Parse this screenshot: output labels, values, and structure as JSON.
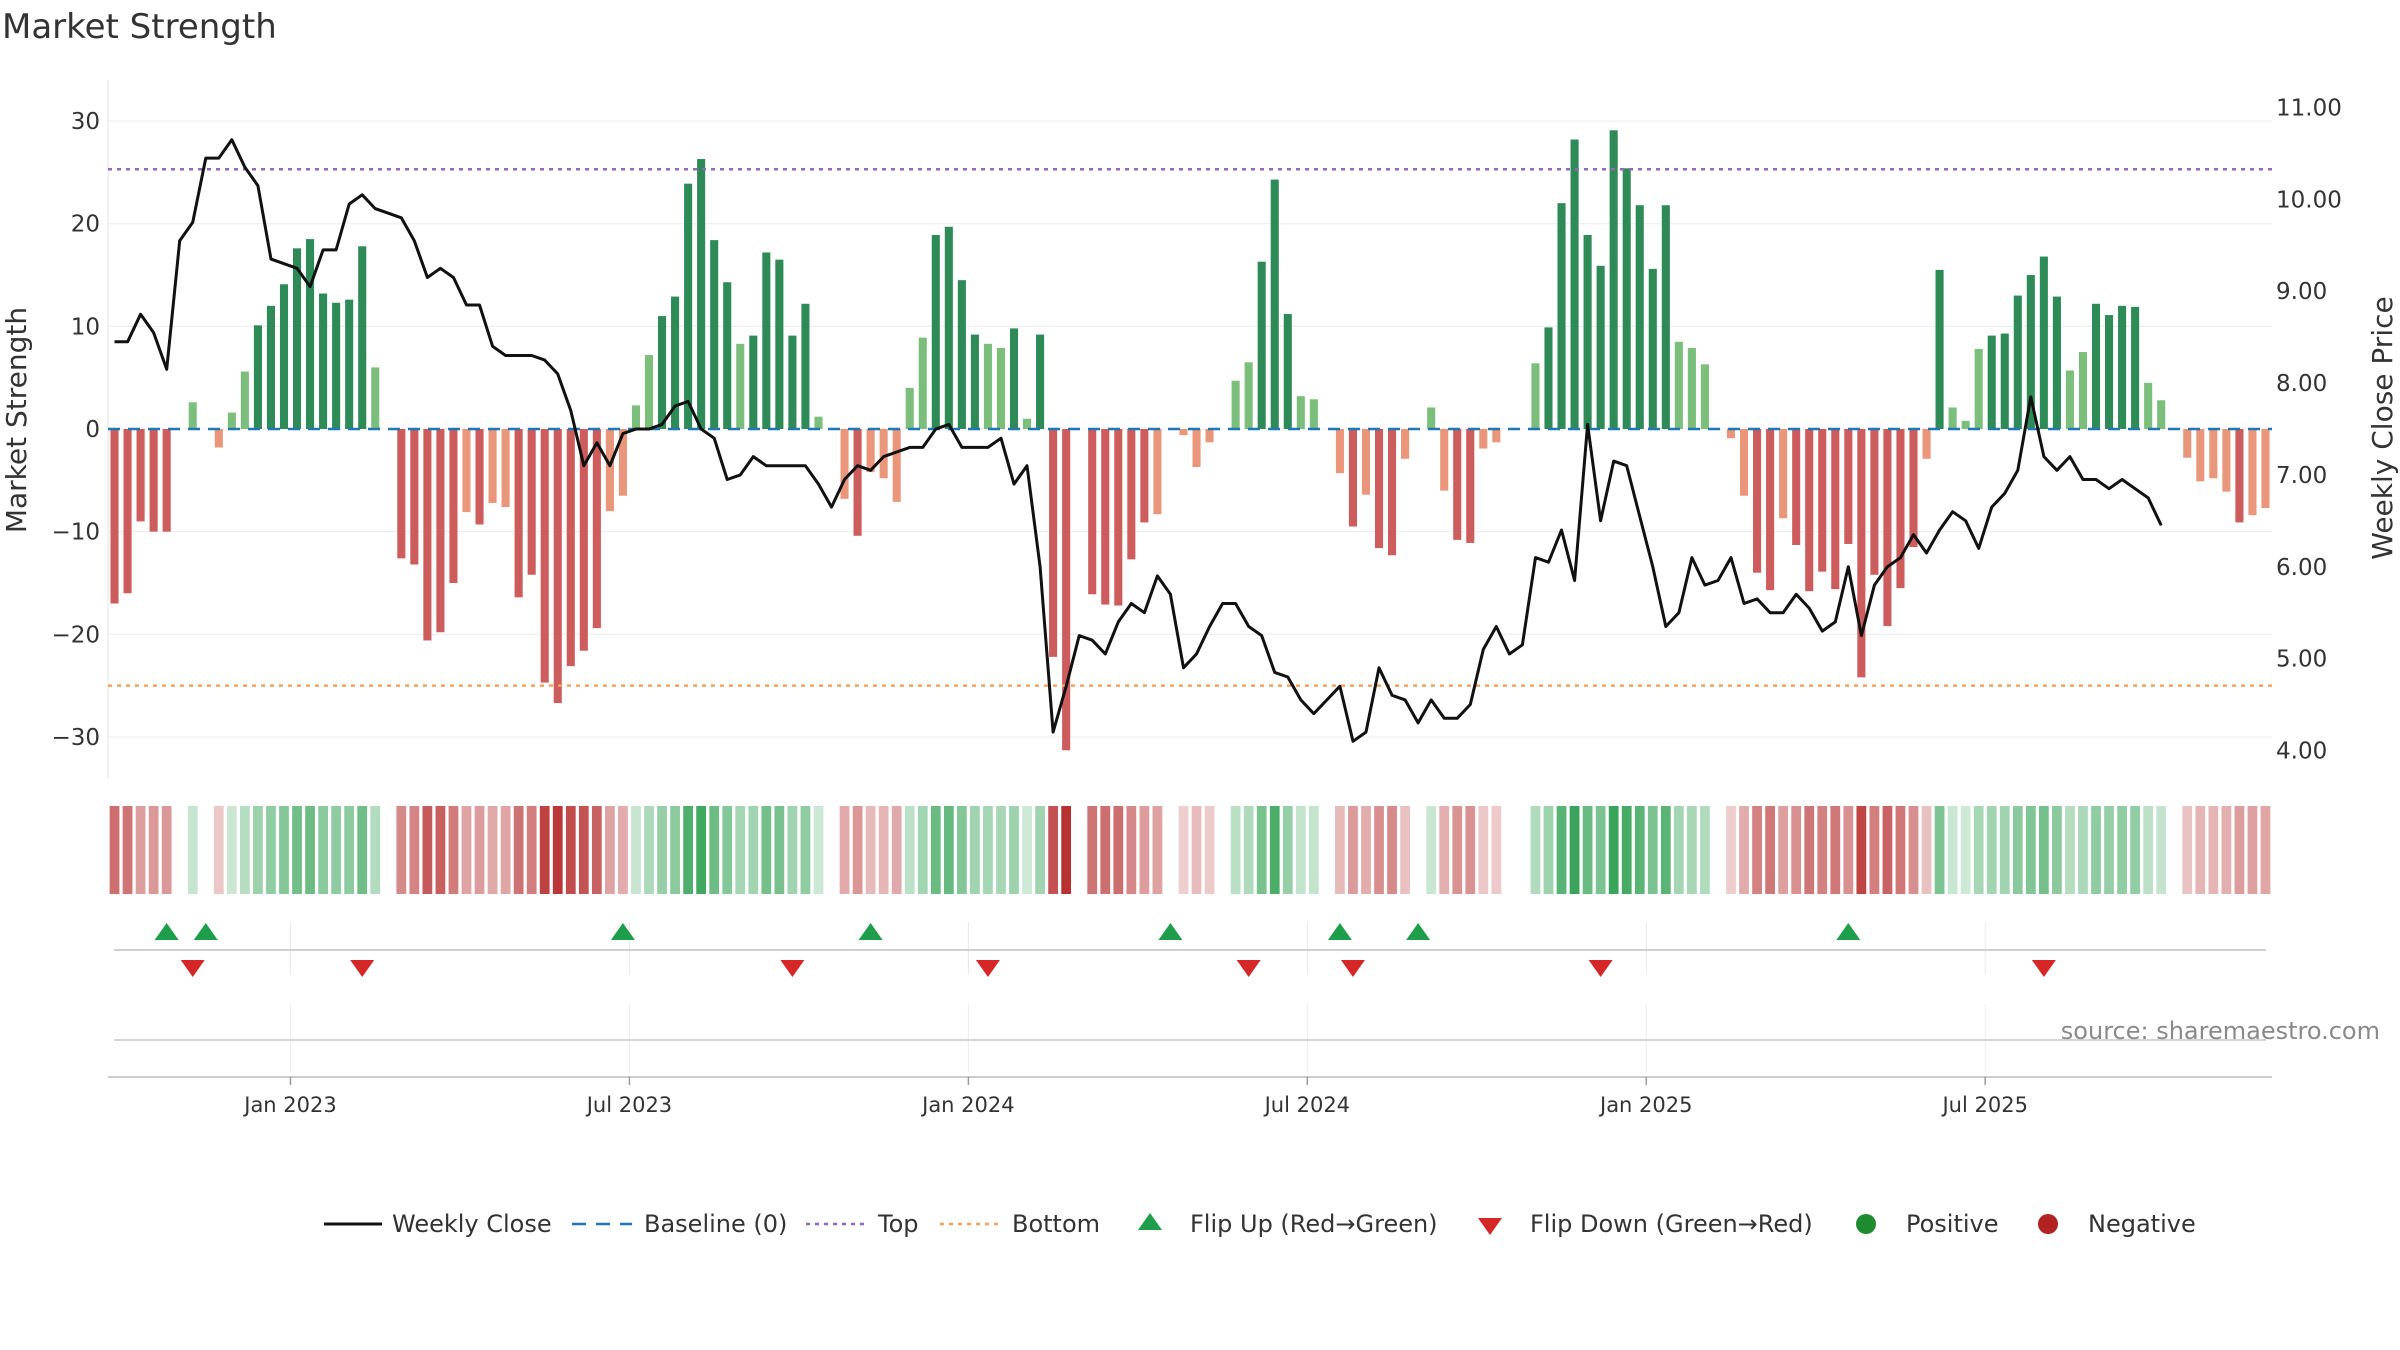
{
  "chart_data": {
    "type": "bar+line",
    "title": "Market Strength",
    "ylabel_left": "Market Strength",
    "ylabel_right": "Weekly Close Price",
    "source": "source: sharemaestro.com",
    "left_ylim": [
      -34,
      34
    ],
    "left_ticks": [
      30,
      20,
      10,
      0,
      -10,
      -20,
      -30
    ],
    "left_tick_labels": [
      "30",
      "20",
      "10",
      "0",
      "−10",
      "−20",
      "−30"
    ],
    "right_ylim": [
      3.7,
      11.3
    ],
    "right_ticks": [
      11,
      10,
      9,
      8,
      7,
      6,
      5,
      4
    ],
    "right_tick_labels": [
      "11.00",
      "10.00",
      "9.00",
      "8.00",
      "7.00",
      "6.00",
      "5.00",
      "4.00"
    ],
    "top_level": 25.3,
    "bottom_level": -25,
    "x_ticks": [
      {
        "week": 14,
        "label": "Jan 2023"
      },
      {
        "week": 40,
        "label": "Jul 2023"
      },
      {
        "week": 66,
        "label": "Jan 2024"
      },
      {
        "week": 92,
        "label": "Jul 2024"
      },
      {
        "week": 118,
        "label": "Jan 2025"
      },
      {
        "week": 144,
        "label": "Jul 2025"
      }
    ],
    "strength": [
      -17,
      -16,
      -9,
      -10,
      -10,
      0,
      2.6,
      0,
      -1.8,
      1.6,
      5.6,
      10.1,
      12,
      14.1,
      17.6,
      18.5,
      13.2,
      12.3,
      12.6,
      17.8,
      6,
      0,
      -12.6,
      -13.2,
      -20.6,
      -19.8,
      -15,
      -8.1,
      -9.3,
      -7.2,
      -7.6,
      -16.4,
      -14.2,
      -24.7,
      -26.7,
      -23.1,
      -21.6,
      -19.4,
      -8,
      -6.5,
      2.3,
      7.2,
      11,
      12.9,
      23.9,
      26.3,
      18.4,
      14.3,
      8.3,
      9.1,
      17.2,
      16.5,
      9.1,
      12.2,
      1.2,
      0,
      -6.8,
      -10.4,
      -4.2,
      -4.8,
      -7.1,
      4,
      8.9,
      18.9,
      19.7,
      14.5,
      9.2,
      8.3,
      7.9,
      9.8,
      1,
      9.2,
      -22.2,
      -31.3,
      0,
      -16.1,
      -17.1,
      -17.2,
      -12.7,
      -9.1,
      -8.3,
      0,
      -0.6,
      -3.7,
      -1.3,
      0,
      4.7,
      6.5,
      16.3,
      24.3,
      11.2,
      3.2,
      2.9,
      0,
      -4.3,
      -9.5,
      -6.4,
      -11.6,
      -12.3,
      -2.9,
      0,
      2.1,
      -6,
      -10.8,
      -11.1,
      -1.9,
      -1.3,
      0,
      0,
      6.4,
      9.9,
      22,
      28.2,
      18.9,
      15.9,
      29.1,
      25.4,
      21.8,
      15.6,
      21.8,
      8.5,
      7.9,
      6.3,
      0,
      -0.9,
      -6.5,
      -14,
      -15.7,
      -8.7,
      -11.3,
      -15.8,
      -13.9,
      -15.6,
      -11.2,
      -24.2,
      -14.2,
      -19.2,
      -15.5,
      -11.5,
      -2.9,
      15.5,
      2.1,
      0.8,
      7.8,
      9.1,
      9.3,
      13,
      15,
      16.8,
      12.9,
      5.7,
      7.5,
      12.2,
      11.1,
      12,
      11.9,
      4.5,
      2.8,
      0,
      -2.8,
      -5.1,
      -4.8,
      -6.1,
      -9.1,
      -8.4,
      -7.7
    ],
    "close": [
      8.45,
      8.45,
      8.75,
      8.55,
      8.15,
      9.55,
      9.75,
      10.45,
      10.45,
      10.65,
      10.35,
      10.15,
      9.35,
      9.3,
      9.25,
      9.05,
      9.45,
      9.45,
      9.95,
      10.05,
      9.9,
      9.85,
      9.8,
      9.55,
      9.15,
      9.25,
      9.15,
      8.85,
      8.85,
      8.4,
      8.3,
      8.3,
      8.3,
      8.25,
      8.1,
      7.7,
      7.1,
      7.35,
      7.1,
      7.45,
      7.5,
      7.5,
      7.55,
      7.75,
      7.8,
      7.5,
      7.4,
      6.95,
      7.0,
      7.2,
      7.1,
      7.1,
      7.1,
      7.1,
      6.9,
      6.65,
      6.95,
      7.1,
      7.05,
      7.2,
      7.25,
      7.3,
      7.3,
      7.5,
      7.55,
      7.3,
      7.3,
      7.3,
      7.4,
      6.9,
      7.1,
      6.0,
      4.2,
      4.7,
      5.25,
      5.2,
      5.05,
      5.4,
      5.6,
      5.5,
      5.9,
      5.7,
      4.9,
      5.05,
      5.35,
      5.6,
      5.6,
      5.35,
      5.25,
      4.85,
      4.8,
      4.55,
      4.4,
      4.55,
      4.7,
      4.1,
      4.2,
      4.9,
      4.6,
      4.55,
      4.3,
      4.55,
      4.35,
      4.35,
      4.5,
      5.1,
      5.35,
      5.05,
      5.15,
      6.1,
      6.05,
      6.4,
      5.85,
      7.55,
      6.5,
      7.15,
      7.1,
      6.55,
      6.0,
      5.35,
      5.5,
      6.1,
      5.8,
      5.85,
      6.1,
      5.6,
      5.65,
      5.5,
      5.5,
      5.7,
      5.55,
      5.3,
      5.4,
      6.0,
      5.25,
      5.8,
      6.0,
      6.1,
      6.35,
      6.15,
      6.4,
      6.6,
      6.5,
      6.2,
      6.65,
      6.8,
      7.05,
      7.85,
      7.2,
      7.05,
      7.2,
      6.95,
      6.95,
      6.85,
      6.95,
      6.85,
      6.75,
      6.45
    ],
    "flip_up": [
      4,
      7,
      39,
      58,
      81,
      94,
      100,
      133
    ],
    "flip_down": [
      6,
      19,
      52,
      67,
      87,
      95,
      114,
      148
    ],
    "legend": [
      {
        "key": "close",
        "label": "Weekly Close"
      },
      {
        "key": "baseline",
        "label": "Baseline (0)"
      },
      {
        "key": "top",
        "label": "Top"
      },
      {
        "key": "bottom",
        "label": "Bottom"
      },
      {
        "key": "flipup",
        "label": "Flip Up (Red→Green)"
      },
      {
        "key": "flipdown",
        "label": "Flip Down (Green→Red)"
      },
      {
        "key": "positive",
        "label": "Positive"
      },
      {
        "key": "negative",
        "label": "Negative"
      }
    ]
  },
  "colors": {
    "pos_strong": "#2e8b57",
    "pos_weak": "#7cbf7c",
    "neg_strong": "#cd5c5c",
    "neg_weak": "#e9967a",
    "baseline": "#1f77b4",
    "top": "#9467bd",
    "bottom": "#f4a261",
    "close": "#111111",
    "flip_up": "#1e9e4a",
    "flip_down": "#d62728",
    "positive_dot": "#1e8c2e",
    "negative_dot": "#b22222"
  }
}
